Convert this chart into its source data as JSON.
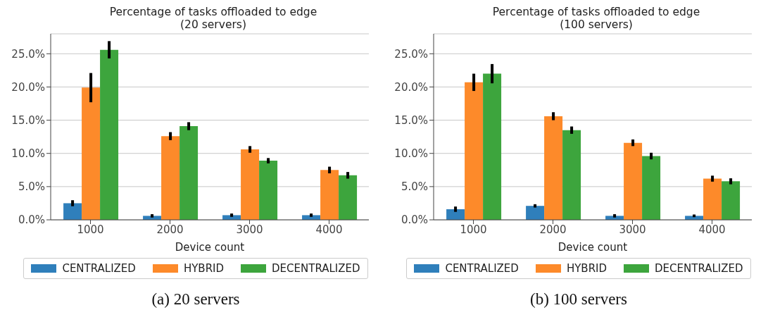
{
  "chart_data": [
    {
      "type": "bar",
      "title": "Percentage of tasks offloaded to edge\n(20 servers)",
      "xlabel": "Device count",
      "categories": [
        "1000",
        "2000",
        "3000",
        "4000"
      ],
      "series": [
        {
          "name": "CENTRALIZED",
          "color": "#2f7fbb",
          "values": [
            2.5,
            0.6,
            0.7,
            0.7
          ],
          "errors": [
            0.45,
            0.25,
            0.25,
            0.25
          ]
        },
        {
          "name": "HYBRID",
          "color": "#fd8a2a",
          "values": [
            19.9,
            12.6,
            10.6,
            7.5
          ],
          "errors": [
            2.2,
            0.6,
            0.5,
            0.5
          ]
        },
        {
          "name": "DECENTRALIZED",
          "color": "#3da53d",
          "values": [
            25.6,
            14.1,
            8.9,
            6.7
          ],
          "errors": [
            1.3,
            0.6,
            0.4,
            0.5
          ]
        }
      ],
      "ylim": [
        0,
        28
      ],
      "yticks": [
        {
          "value": 0,
          "label": "0.0%"
        },
        {
          "value": 5,
          "label": "5.0%"
        },
        {
          "value": 10,
          "label": "10.0%"
        },
        {
          "value": 15,
          "label": "15.0%"
        },
        {
          "value": 20,
          "label": "20.0%"
        },
        {
          "value": 25,
          "label": "25.0%"
        }
      ],
      "grid": "y",
      "legend": "bottom",
      "annotations": [
        "(a) 20 servers"
      ]
    },
    {
      "type": "bar",
      "title": "Percentage of tasks offloaded to edge\n(100 servers)",
      "xlabel": "Device count",
      "categories": [
        "1000",
        "2000",
        "3000",
        "4000"
      ],
      "series": [
        {
          "name": "CENTRALIZED",
          "color": "#2f7fbb",
          "values": [
            1.6,
            2.1,
            0.6,
            0.6
          ],
          "errors": [
            0.4,
            0.25,
            0.25,
            0.2
          ]
        },
        {
          "name": "HYBRID",
          "color": "#fd8a2a",
          "values": [
            20.7,
            15.6,
            11.6,
            6.2
          ],
          "errors": [
            1.3,
            0.6,
            0.5,
            0.45
          ]
        },
        {
          "name": "DECENTRALIZED",
          "color": "#3da53d",
          "values": [
            22.0,
            13.5,
            9.6,
            5.8
          ],
          "errors": [
            1.45,
            0.55,
            0.5,
            0.45
          ]
        }
      ],
      "ylim": [
        0,
        28
      ],
      "yticks": [
        {
          "value": 0,
          "label": "0.0%"
        },
        {
          "value": 5,
          "label": "5.0%"
        },
        {
          "value": 10,
          "label": "10.0%"
        },
        {
          "value": 15,
          "label": "15.0%"
        },
        {
          "value": 20,
          "label": "20.0%"
        },
        {
          "value": 25,
          "label": "25.0%"
        }
      ],
      "grid": "y",
      "legend": "bottom",
      "annotations": [
        "(b) 100 servers"
      ]
    }
  ]
}
